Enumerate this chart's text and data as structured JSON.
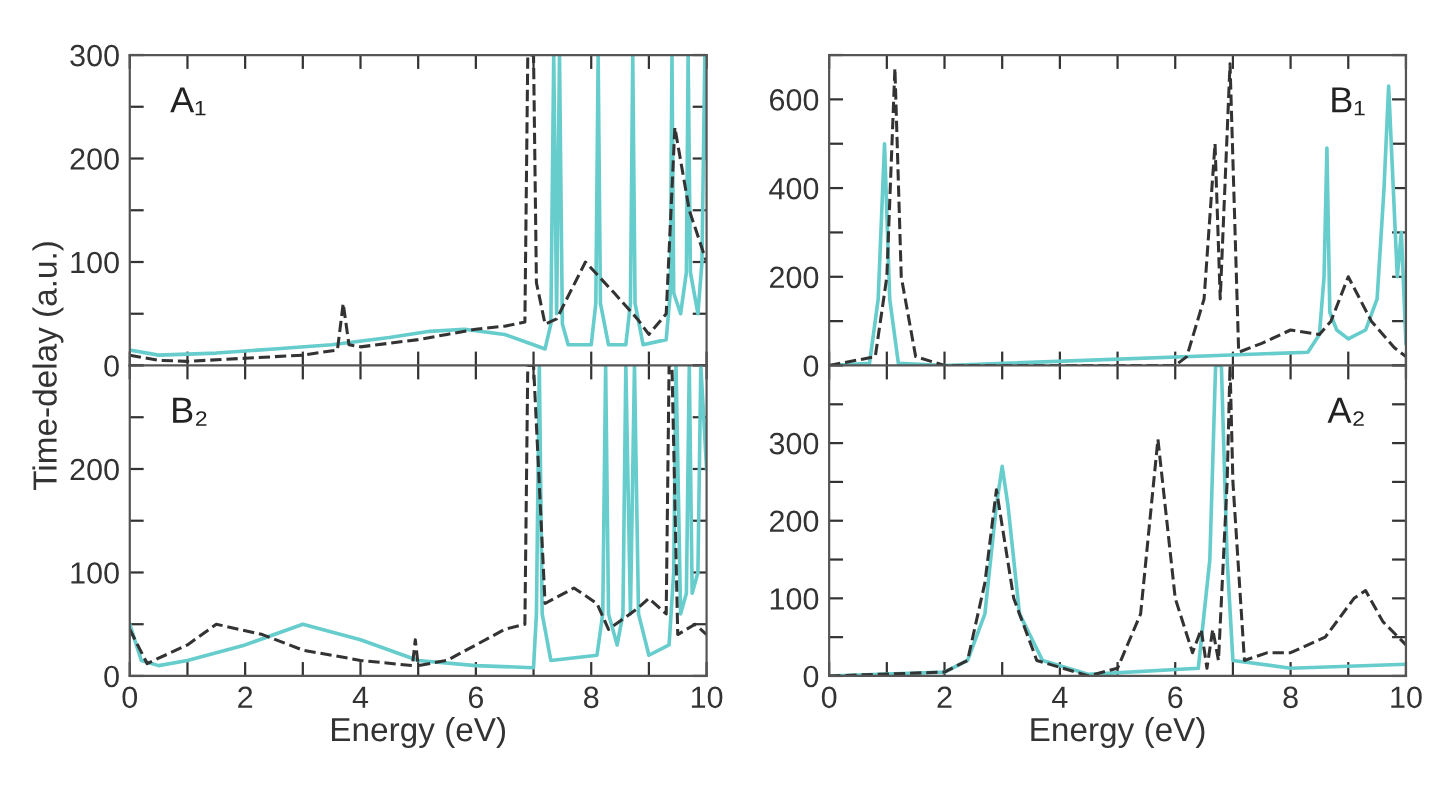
{
  "chart_data": [
    {
      "type": "line",
      "annotations": [
        "A₁"
      ],
      "ylabel": "Time-delay (a.u.)",
      "xlim": [
        0,
        10
      ],
      "ylim": [
        0,
        300
      ],
      "tick_labels": "y",
      "xticks": [
        {
          "value": 0,
          "label": null
        },
        {
          "value": 1,
          "label": null
        },
        {
          "value": 2,
          "label": null
        },
        {
          "value": 3,
          "label": null
        },
        {
          "value": 4,
          "label": null
        },
        {
          "value": 5,
          "label": null
        },
        {
          "value": 6,
          "label": null
        },
        {
          "value": 7,
          "label": null
        },
        {
          "value": 8,
          "label": null
        },
        {
          "value": 9,
          "label": null
        },
        {
          "value": 10,
          "label": null
        }
      ],
      "yticks": [
        0,
        {
          "value": 50,
          "label": null
        },
        100,
        {
          "value": 150,
          "label": null
        },
        200,
        {
          "value": 250,
          "label": null
        },
        300
      ],
      "series": [
        {
          "color": "#66cccc",
          "line_style": "solid",
          "x": [
            0,
            0.5,
            1.5,
            2.5,
            3.5,
            4.5,
            5.2,
            5.8,
            6.5,
            7.0,
            7.2,
            7.3,
            7.35,
            7.4,
            7.45,
            7.5,
            7.6,
            8.0,
            8.08,
            8.12,
            8.16,
            8.3,
            8.6,
            8.68,
            8.72,
            8.76,
            8.9,
            9.3,
            9.37,
            9.4,
            9.43,
            9.55,
            9.65,
            9.68,
            9.72,
            9.85,
            9.92,
            9.97,
            10
          ],
          "values": [
            15,
            10,
            12,
            16,
            20,
            27,
            33,
            35,
            30,
            20,
            16,
            40,
            300,
            50,
            300,
            40,
            20,
            20,
            60,
            300,
            60,
            20,
            20,
            60,
            300,
            60,
            20,
            25,
            70,
            300,
            70,
            50,
            90,
            300,
            90,
            50,
            100,
            300,
            200
          ]
        },
        {
          "color": "#333333",
          "line_style": "dashed",
          "x": [
            0,
            0.5,
            1,
            2,
            3,
            3.6,
            3.7,
            3.8,
            4,
            5,
            5.5,
            6,
            6.5,
            6.85,
            6.9,
            7.0,
            7.05,
            7.2,
            7.4,
            7.9,
            8.4,
            8.8,
            9.0,
            9.3,
            9.45,
            9.7,
            10
          ],
          "values": [
            10,
            5,
            4,
            7,
            10,
            15,
            60,
            20,
            18,
            25,
            30,
            35,
            38,
            42,
            300,
            300,
            80,
            40,
            45,
            100,
            70,
            45,
            30,
            50,
            230,
            150,
            100
          ]
        }
      ]
    },
    {
      "type": "line",
      "annotations": [
        "B₁"
      ],
      "xlim": [
        0,
        10
      ],
      "ylim": [
        0,
        700
      ],
      "tick_labels": "y",
      "xticks": [
        {
          "value": 0,
          "label": null
        },
        {
          "value": 1,
          "label": null
        },
        {
          "value": 2,
          "label": null
        },
        {
          "value": 3,
          "label": null
        },
        {
          "value": 4,
          "label": null
        },
        {
          "value": 5,
          "label": null
        },
        {
          "value": 6,
          "label": null
        },
        {
          "value": 7,
          "label": null
        },
        {
          "value": 8,
          "label": null
        },
        {
          "value": 9,
          "label": null
        },
        {
          "value": 10,
          "label": null
        }
      ],
      "yticks": [
        0,
        {
          "value": 100,
          "label": null
        },
        200,
        {
          "value": 300,
          "label": null
        },
        400,
        {
          "value": 500,
          "label": null
        },
        600,
        {
          "value": 700,
          "label": null
        }
      ],
      "series": [
        {
          "color": "#66cccc",
          "line_style": "solid",
          "x": [
            0,
            0.7,
            0.85,
            0.96,
            1.05,
            1.2,
            2,
            8.3,
            8.5,
            8.58,
            8.63,
            8.68,
            8.8,
            9.0,
            9.3,
            9.5,
            9.62,
            9.7,
            9.78,
            9.85,
            9.92,
            10
          ],
          "values": [
            0,
            5,
            150,
            500,
            150,
            5,
            0,
            30,
            70,
            200,
            490,
            120,
            80,
            60,
            80,
            150,
            400,
            630,
            400,
            200,
            300,
            50
          ]
        },
        {
          "color": "#333333",
          "line_style": "dashed",
          "x": [
            0,
            0.8,
            1.0,
            1.14,
            1.25,
            1.5,
            2,
            6,
            6.2,
            6.5,
            6.69,
            6.78,
            6.95,
            7.1,
            7.5,
            8,
            8.5,
            8.7,
            9.0,
            9.4,
            9.8,
            10
          ],
          "values": [
            0,
            20,
            200,
            670,
            200,
            20,
            0,
            0,
            20,
            150,
            500,
            150,
            680,
            30,
            50,
            80,
            70,
            100,
            200,
            100,
            40,
            20
          ]
        }
      ]
    },
    {
      "type": "line",
      "annotations": [
        "B₂"
      ],
      "xlabel": "Energy (eV)",
      "xlim": [
        0,
        10
      ],
      "ylim": [
        0,
        300
      ],
      "xticks": [
        0,
        {
          "value": 1,
          "label": null
        },
        2,
        {
          "value": 3,
          "label": null
        },
        4,
        {
          "value": 5,
          "label": null
        },
        6,
        {
          "value": 7,
          "label": null
        },
        8,
        {
          "value": 9,
          "label": null
        },
        10
      ],
      "yticks": [
        0,
        {
          "value": 50,
          "label": null
        },
        100,
        {
          "value": 150,
          "label": null
        },
        200,
        {
          "value": 250,
          "label": null
        },
        {
          "value": 300,
          "label": null
        }
      ],
      "series": [
        {
          "color": "#66cccc",
          "line_style": "solid",
          "x": [
            0,
            0.2,
            0.5,
            1,
            2,
            3,
            4,
            5,
            6,
            7,
            7.05,
            7.1,
            7.15,
            7.3,
            8.1,
            8.2,
            8.25,
            8.3,
            8.45,
            8.55,
            8.6,
            8.68,
            8.75,
            8.82,
            9.0,
            9.35,
            9.43,
            9.47,
            9.55,
            9.65,
            9.7,
            9.75,
            9.85,
            9.9,
            10
          ],
          "values": [
            50,
            15,
            10,
            15,
            30,
            50,
            35,
            15,
            10,
            8,
            60,
            300,
            60,
            15,
            20,
            60,
            300,
            60,
            30,
            60,
            300,
            60,
            300,
            60,
            20,
            30,
            100,
            300,
            60,
            80,
            300,
            80,
            100,
            300,
            200
          ]
        },
        {
          "color": "#333333",
          "line_style": "dashed",
          "x": [
            0,
            0.3,
            1,
            1.5,
            2.3,
            3,
            4,
            4.9,
            4.95,
            5.0,
            5.5,
            6,
            6.5,
            6.85,
            6.9,
            7.0,
            7.2,
            7.7,
            8.1,
            8.3,
            8.8,
            9.0,
            9.3,
            9.35,
            9.4,
            9.5,
            9.8,
            10
          ],
          "values": [
            45,
            12,
            30,
            50,
            40,
            25,
            15,
            10,
            35,
            10,
            15,
            30,
            45,
            50,
            300,
            300,
            70,
            85,
            70,
            45,
            65,
            75,
            60,
            300,
            300,
            40,
            50,
            40
          ]
        }
      ]
    },
    {
      "type": "line",
      "annotations": [
        "A₂"
      ],
      "xlabel": "Energy (eV)",
      "xlim": [
        0,
        10
      ],
      "ylim": [
        0,
        400
      ],
      "xticks": [
        0,
        {
          "value": 1,
          "label": null
        },
        2,
        {
          "value": 3,
          "label": null
        },
        4,
        {
          "value": 5,
          "label": null
        },
        6,
        {
          "value": 7,
          "label": null
        },
        8,
        {
          "value": 9,
          "label": null
        },
        10
      ],
      "yticks": [
        0,
        {
          "value": 50,
          "label": null
        },
        100,
        {
          "value": 150,
          "label": null
        },
        200,
        {
          "value": 250,
          "label": null
        },
        300,
        {
          "value": 350,
          "label": null
        },
        {
          "value": 400,
          "label": null
        }
      ],
      "series": [
        {
          "color": "#66cccc",
          "line_style": "solid",
          "x": [
            0,
            2,
            2.4,
            2.7,
            2.9,
            3.0,
            3.1,
            3.3,
            3.7,
            4.5,
            6.4,
            6.6,
            6.7,
            6.8,
            6.9,
            7.0,
            8,
            10
          ],
          "values": [
            0,
            5,
            20,
            80,
            220,
            270,
            220,
            80,
            20,
            2,
            10,
            150,
            400,
            400,
            150,
            20,
            10,
            15
          ]
        },
        {
          "color": "#333333",
          "line_style": "dashed",
          "x": [
            0,
            2,
            2.4,
            2.7,
            2.9,
            3.2,
            3.6,
            4.5,
            5,
            5.4,
            5.7,
            6.0,
            6.3,
            6.45,
            6.55,
            6.65,
            6.75,
            6.9,
            6.95,
            7.0,
            7.2,
            7.6,
            8,
            8.6,
            9.1,
            9.3,
            9.6,
            10
          ],
          "values": [
            0,
            5,
            20,
            120,
            240,
            100,
            20,
            0,
            10,
            80,
            305,
            100,
            30,
            60,
            10,
            60,
            20,
            250,
            400,
            250,
            20,
            30,
            30,
            50,
            100,
            110,
            70,
            40
          ]
        }
      ]
    }
  ]
}
